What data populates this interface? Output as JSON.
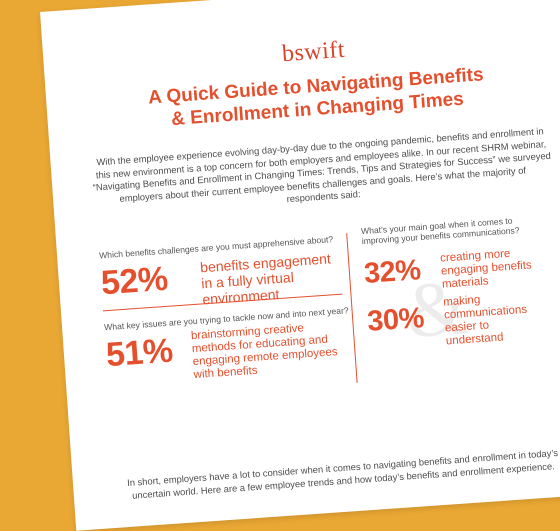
{
  "logo": "bswift",
  "title": {
    "line1": "A Quick Guide to Navigating Benefits",
    "line2": "& Enrollment in Changing Times"
  },
  "intro": "With the employee experience evolving day-by-day due to the ongoing pandemic, benefits and enrollment in this new environment is a top concern for both employers and employees alike. In our recent SHRM webinar, “Navigating Benefits and Enrollment in Changing Times: Trends, Tips and Strategies for Success” we surveyed employers about their current employee benefits challenges and goals. Here’s what the majority of respondents said:",
  "stats": {
    "challenges": {
      "question": "Which benefits challenges are you must apprehensive about?",
      "percent": "52%",
      "text": "benefits engagement in a fully virtual environment"
    },
    "issues": {
      "question": "What key issues are you trying to tackle now and into next year?",
      "percent": "51%",
      "text": "brainstorming creative methods for educating and engaging remote employees with benefits"
    },
    "goal": {
      "question": "What’s your main goal when it comes to improving your benefits communications?",
      "items": [
        {
          "percent": "32%",
          "text": "creating more engaging benefits materials"
        },
        {
          "percent": "30%",
          "text": "making communications easier to understand"
        }
      ]
    }
  },
  "amp_glyph": "&",
  "outro": "In short, employers have a lot to consider when it comes to navigating benefits and enrollment in today’s uncertain world. Here are a few employee trends and how today’s benefits and enrollment experience."
}
